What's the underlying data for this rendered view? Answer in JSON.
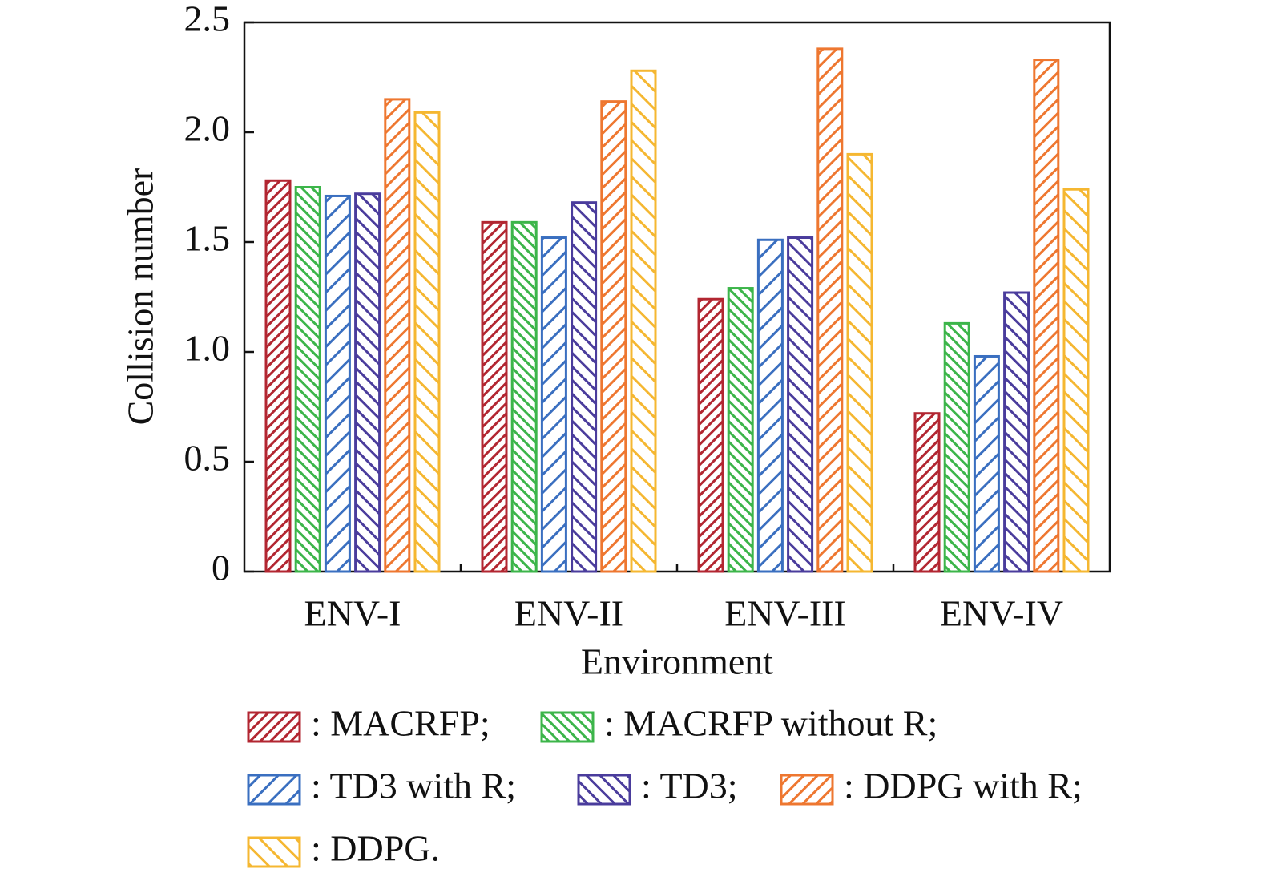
{
  "chart_data": {
    "type": "bar",
    "xlabel": "Environment",
    "ylabel": "Collision number",
    "categories": [
      "ENV-I",
      "ENV-II",
      "ENV-III",
      "ENV-IV"
    ],
    "series": [
      {
        "name": ": MACRFP;",
        "color": "#b22631",
        "values": [
          1.78,
          1.59,
          1.24,
          0.72
        ]
      },
      {
        "name": ": MACRFP without R;",
        "color": "#3cb54a",
        "values": [
          1.75,
          1.59,
          1.29,
          1.13
        ]
      },
      {
        "name": ": TD3 with R;",
        "color": "#3a6fc0",
        "values": [
          1.71,
          1.52,
          1.51,
          0.98
        ]
      },
      {
        "name": ": TD3;",
        "color": "#4a3c9c",
        "values": [
          1.72,
          1.68,
          1.52,
          1.27
        ]
      },
      {
        "name": ": DDPG with R;",
        "color": "#ee7730",
        "values": [
          2.15,
          2.14,
          2.38,
          2.33
        ]
      },
      {
        "name": ": DDPG.",
        "color": "#f5b731",
        "values": [
          2.09,
          2.28,
          1.9,
          1.74
        ]
      }
    ],
    "ylim": [
      0,
      2.5
    ],
    "yticks": [
      0,
      0.5,
      {
        "value": 1,
        "label": "1.0"
      },
      1.5,
      {
        "value": 2,
        "label": "2.0"
      },
      2.5
    ]
  }
}
